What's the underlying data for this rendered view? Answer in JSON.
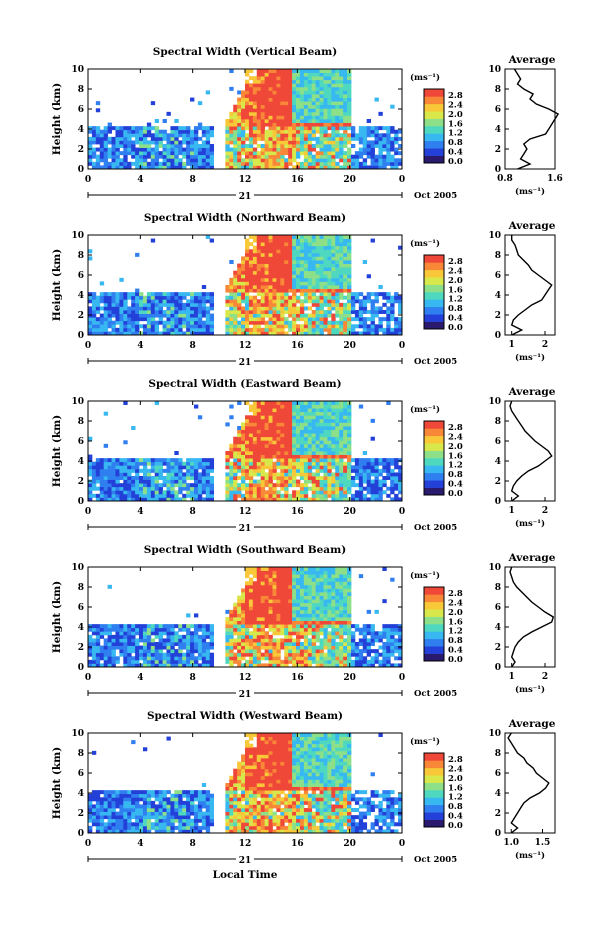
{
  "shared": {
    "ylabel": "Height (km)",
    "y_ticks": [
      "0",
      "2",
      "4",
      "6",
      "8",
      "10"
    ],
    "x_ticks": [
      "0",
      "4",
      "8",
      "12",
      "16",
      "20",
      "0"
    ],
    "day_label": "21",
    "date_label": "Oct 2005",
    "unit_label": "(ms⁻¹)",
    "colorbar_ticks": [
      "0.0",
      "0.4",
      "0.8",
      "1.2",
      "1.6",
      "2.0",
      "2.4",
      "2.8"
    ],
    "average_title": "Average",
    "average_unit": "(ms⁻¹)",
    "xlabel": "Local Time"
  },
  "colors": {
    "colormap": [
      "#2a1a6e",
      "#2340d8",
      "#2f7ff0",
      "#38b8f0",
      "#4fd8c0",
      "#8ee088",
      "#d8e84a",
      "#f8c838",
      "#f88838",
      "#f04838"
    ]
  },
  "chart_data": [
    {
      "type": "heatmap",
      "title": "Spectral Width (Vertical Beam)",
      "x_range_hours": [
        0,
        24
      ],
      "y_range_km": [
        0,
        10
      ],
      "color_range": [
        0.0,
        2.8
      ],
      "avg_ticks": [
        "0.8",
        "1.6"
      ],
      "avg_xlim": [
        0.8,
        1.6
      ],
      "average_profile": {
        "height_km": [
          0,
          0.5,
          1,
          1.5,
          2,
          2.5,
          3,
          3.5,
          4,
          4.5,
          5,
          5.5,
          6,
          6.5,
          7,
          7.5,
          8,
          8.5,
          9,
          9.5,
          10
        ],
        "value": [
          1.0,
          1.2,
          1.05,
          1.1,
          1.15,
          1.1,
          1.2,
          1.45,
          1.5,
          1.55,
          1.6,
          1.65,
          1.5,
          1.3,
          1.2,
          1.25,
          1.1,
          1.0,
          1.05,
          1.0,
          0.95
        ]
      }
    },
    {
      "type": "heatmap",
      "title": "Spectral Width (Northward Beam)",
      "x_range_hours": [
        0,
        24
      ],
      "y_range_km": [
        0,
        10
      ],
      "color_range": [
        0.0,
        2.8
      ],
      "avg_ticks": [
        "1",
        "2"
      ],
      "avg_xlim": [
        0.8,
        2.3
      ],
      "average_profile": {
        "height_km": [
          0,
          0.5,
          1,
          1.5,
          2,
          2.5,
          3,
          3.5,
          4,
          4.5,
          5,
          5.5,
          6,
          6.5,
          7,
          7.5,
          8,
          8.5,
          9,
          9.5,
          10
        ],
        "value": [
          1.0,
          1.3,
          1.0,
          1.05,
          1.2,
          1.4,
          1.6,
          1.9,
          2.0,
          2.1,
          2.2,
          2.0,
          1.8,
          1.6,
          1.5,
          1.35,
          1.2,
          1.15,
          1.1,
          1.0,
          1.0
        ]
      }
    },
    {
      "type": "heatmap",
      "title": "Spectral Width (Eastward Beam)",
      "x_range_hours": [
        0,
        24
      ],
      "y_range_km": [
        0,
        10
      ],
      "color_range": [
        0.0,
        2.8
      ],
      "avg_ticks": [
        "1",
        "2"
      ],
      "avg_xlim": [
        0.8,
        2.3
      ],
      "average_profile": {
        "height_km": [
          0,
          0.5,
          1,
          1.5,
          2,
          2.5,
          3,
          3.5,
          4,
          4.5,
          5,
          5.5,
          6,
          6.5,
          7,
          7.5,
          8,
          8.5,
          9,
          9.5,
          10
        ],
        "value": [
          1.0,
          1.2,
          1.0,
          1.05,
          1.15,
          1.3,
          1.5,
          1.8,
          2.0,
          2.2,
          2.1,
          1.9,
          1.7,
          1.55,
          1.4,
          1.3,
          1.2,
          1.1,
          1.0,
          0.95,
          1.0
        ]
      }
    },
    {
      "type": "heatmap",
      "title": "Spectral Width (Southward Beam)",
      "x_range_hours": [
        0,
        24
      ],
      "y_range_km": [
        0,
        10
      ],
      "color_range": [
        0.0,
        2.8
      ],
      "avg_ticks": [
        "1",
        "2"
      ],
      "avg_xlim": [
        0.8,
        2.3
      ],
      "average_profile": {
        "height_km": [
          0,
          0.5,
          1,
          1.5,
          2,
          2.5,
          3,
          3.5,
          4,
          4.5,
          5,
          5.5,
          6,
          6.5,
          7,
          7.5,
          8,
          8.5,
          9,
          9.5,
          10
        ],
        "value": [
          1.0,
          1.1,
          1.0,
          1.05,
          1.1,
          1.2,
          1.35,
          1.6,
          1.9,
          2.2,
          2.25,
          2.0,
          1.8,
          1.6,
          1.45,
          1.3,
          1.15,
          1.05,
          1.0,
          0.95,
          1.0
        ]
      }
    },
    {
      "type": "heatmap",
      "title": "Spectral Width (Westward Beam)",
      "x_range_hours": [
        0,
        24
      ],
      "y_range_km": [
        0,
        10
      ],
      "color_range": [
        0.0,
        2.8
      ],
      "avg_ticks": [
        "1.0",
        "1.5"
      ],
      "avg_xlim": [
        0.9,
        1.7
      ],
      "average_profile": {
        "height_km": [
          0,
          0.5,
          1,
          1.5,
          2,
          2.5,
          3,
          3.5,
          4,
          4.5,
          5,
          5.5,
          6,
          6.5,
          7,
          7.5,
          8,
          8.5,
          9,
          9.5,
          10
        ],
        "value": [
          1.0,
          1.1,
          1.0,
          1.05,
          1.1,
          1.15,
          1.2,
          1.3,
          1.45,
          1.55,
          1.6,
          1.5,
          1.4,
          1.35,
          1.25,
          1.2,
          1.1,
          1.05,
          1.0,
          0.95,
          1.0
        ]
      }
    }
  ]
}
